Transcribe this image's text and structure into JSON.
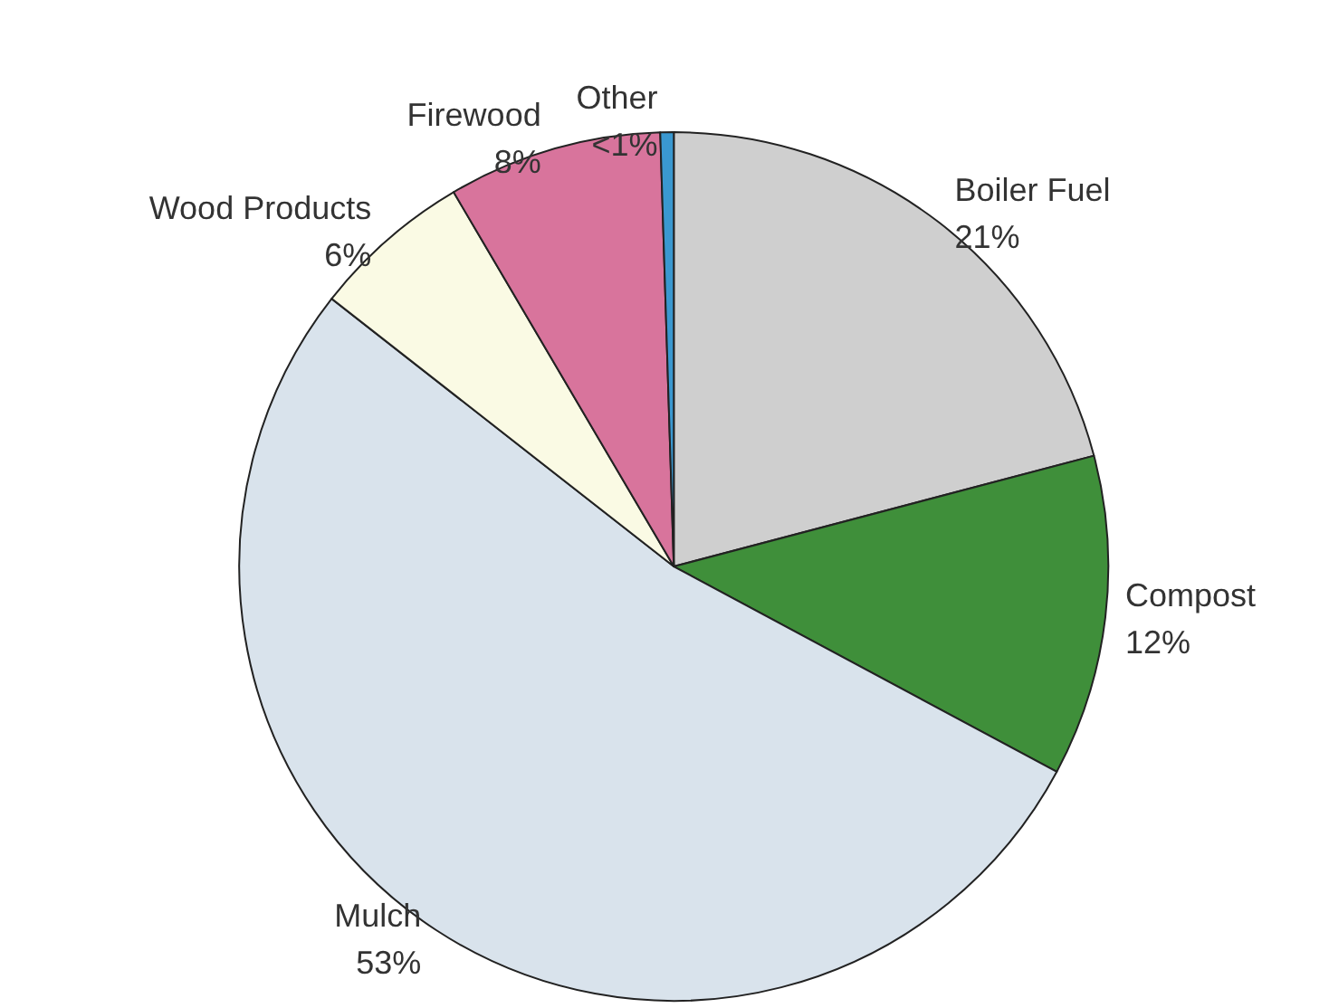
{
  "chart_data": {
    "type": "pie",
    "categories": [
      "Boiler Fuel",
      "Compost",
      "Mulch",
      "Wood Products",
      "Firewood",
      "Other"
    ],
    "values": [
      21,
      12,
      53,
      6,
      8,
      0.5
    ],
    "value_labels": [
      "21%",
      "12%",
      "53%",
      "6%",
      "8%",
      "<1%"
    ],
    "colors": [
      "#cfcfcf",
      "#3f8f3a",
      "#d9e3ec",
      "#fafae4",
      "#d8749c",
      "#3a98d0"
    ],
    "legend": false
  }
}
